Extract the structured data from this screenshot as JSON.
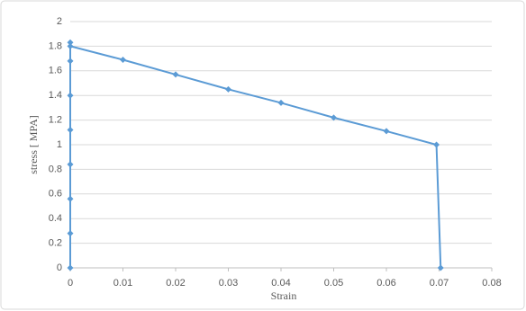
{
  "chart_data": {
    "type": "line",
    "x_label": "Strain",
    "y_label": "stress [ MPA]",
    "series": [
      {
        "color": "#5b9bd5",
        "x": [
          0,
          0,
          0,
          0,
          0,
          0,
          0,
          0,
          0,
          0.01,
          0.02,
          0.03,
          0.04,
          0.05,
          0.06,
          0.0695,
          0.0703
        ],
        "values": [
          0,
          0.28,
          0.56,
          0.84,
          1.12,
          1.4,
          1.68,
          1.83,
          1.8,
          1.69,
          1.57,
          1.45,
          1.34,
          1.22,
          1.11,
          1.0,
          0
        ]
      }
    ],
    "xlim": [
      0,
      0.08
    ],
    "xticks": [
      0,
      0.01,
      0.02,
      0.03,
      0.04,
      0.05,
      0.06,
      0.07,
      0.08
    ],
    "ylim": [
      0,
      2
    ],
    "yticks": [
      0,
      0.2,
      0.4,
      0.6,
      0.8,
      1,
      1.2,
      1.4,
      1.6,
      1.8,
      2
    ],
    "grid": true,
    "marker": "diamond"
  }
}
